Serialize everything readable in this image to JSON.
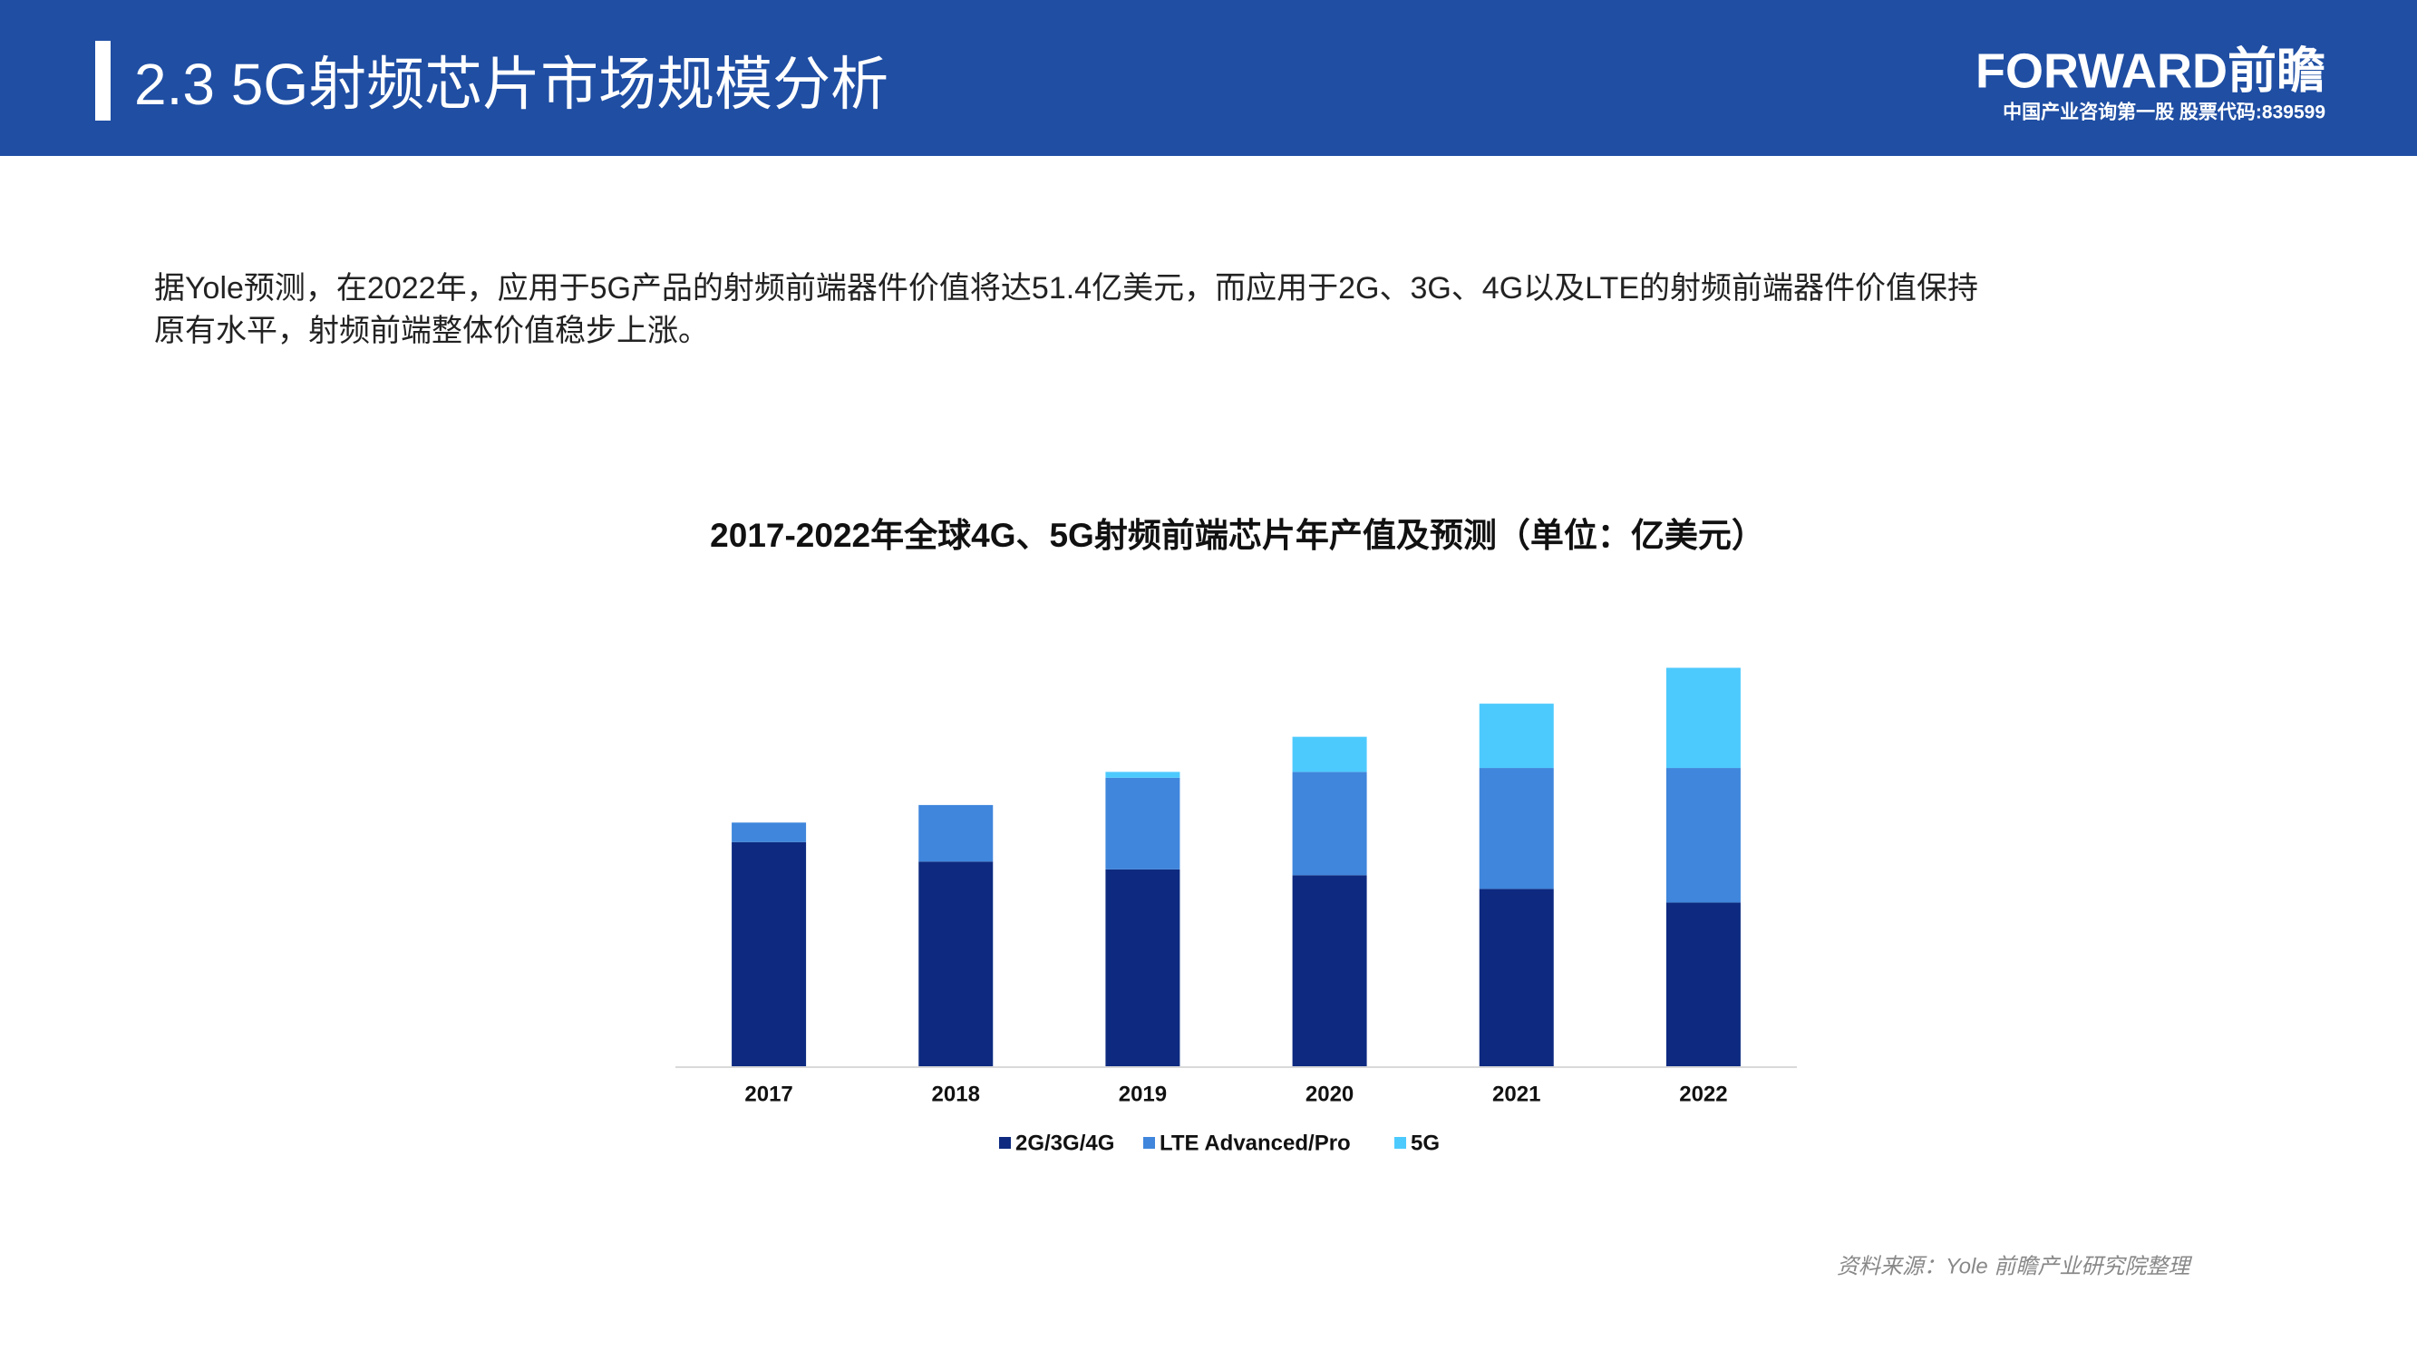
{
  "header": {
    "title": "2.3 5G射频芯片市场规模分析",
    "logo": "FORWARD前瞻",
    "logo_subtitle": "中国产业咨询第一股 股票代码:839599"
  },
  "paragraph_lines": [
    "据Yole预测，在2022年，应用于5G产品的射频前端器件价值将达51.4亿美元，而应用于2G、3G、4G以及LTE的射频前端器件价值保持",
    "原有水平，射频前端整体价值稳步上涨。"
  ],
  "source": "资料来源：Yole 前瞻产业研究院整理",
  "chart_data": {
    "type": "stacked_bar",
    "title": "2017-2022年全球4G、5G射频前端芯片年产值及预测（单位：亿美元）",
    "categories": [
      "2017",
      "2018",
      "2019",
      "2020",
      "2021",
      "2022"
    ],
    "series": [
      {
        "name": "2G/3G/4G",
        "color": "#0d2a80",
        "values": [
          115,
          105,
          101,
          98,
          91,
          84
        ]
      },
      {
        "name": "LTE Advanced/Pro",
        "color": "#3f86dc",
        "values": [
          10,
          29,
          47,
          53,
          62,
          69
        ]
      },
      {
        "name": "5G",
        "color": "#4dcafd",
        "values": [
          0,
          0,
          3,
          18,
          33,
          51.4
        ]
      }
    ],
    "ylim": [
      0,
      220
    ],
    "legend": "bottom"
  }
}
